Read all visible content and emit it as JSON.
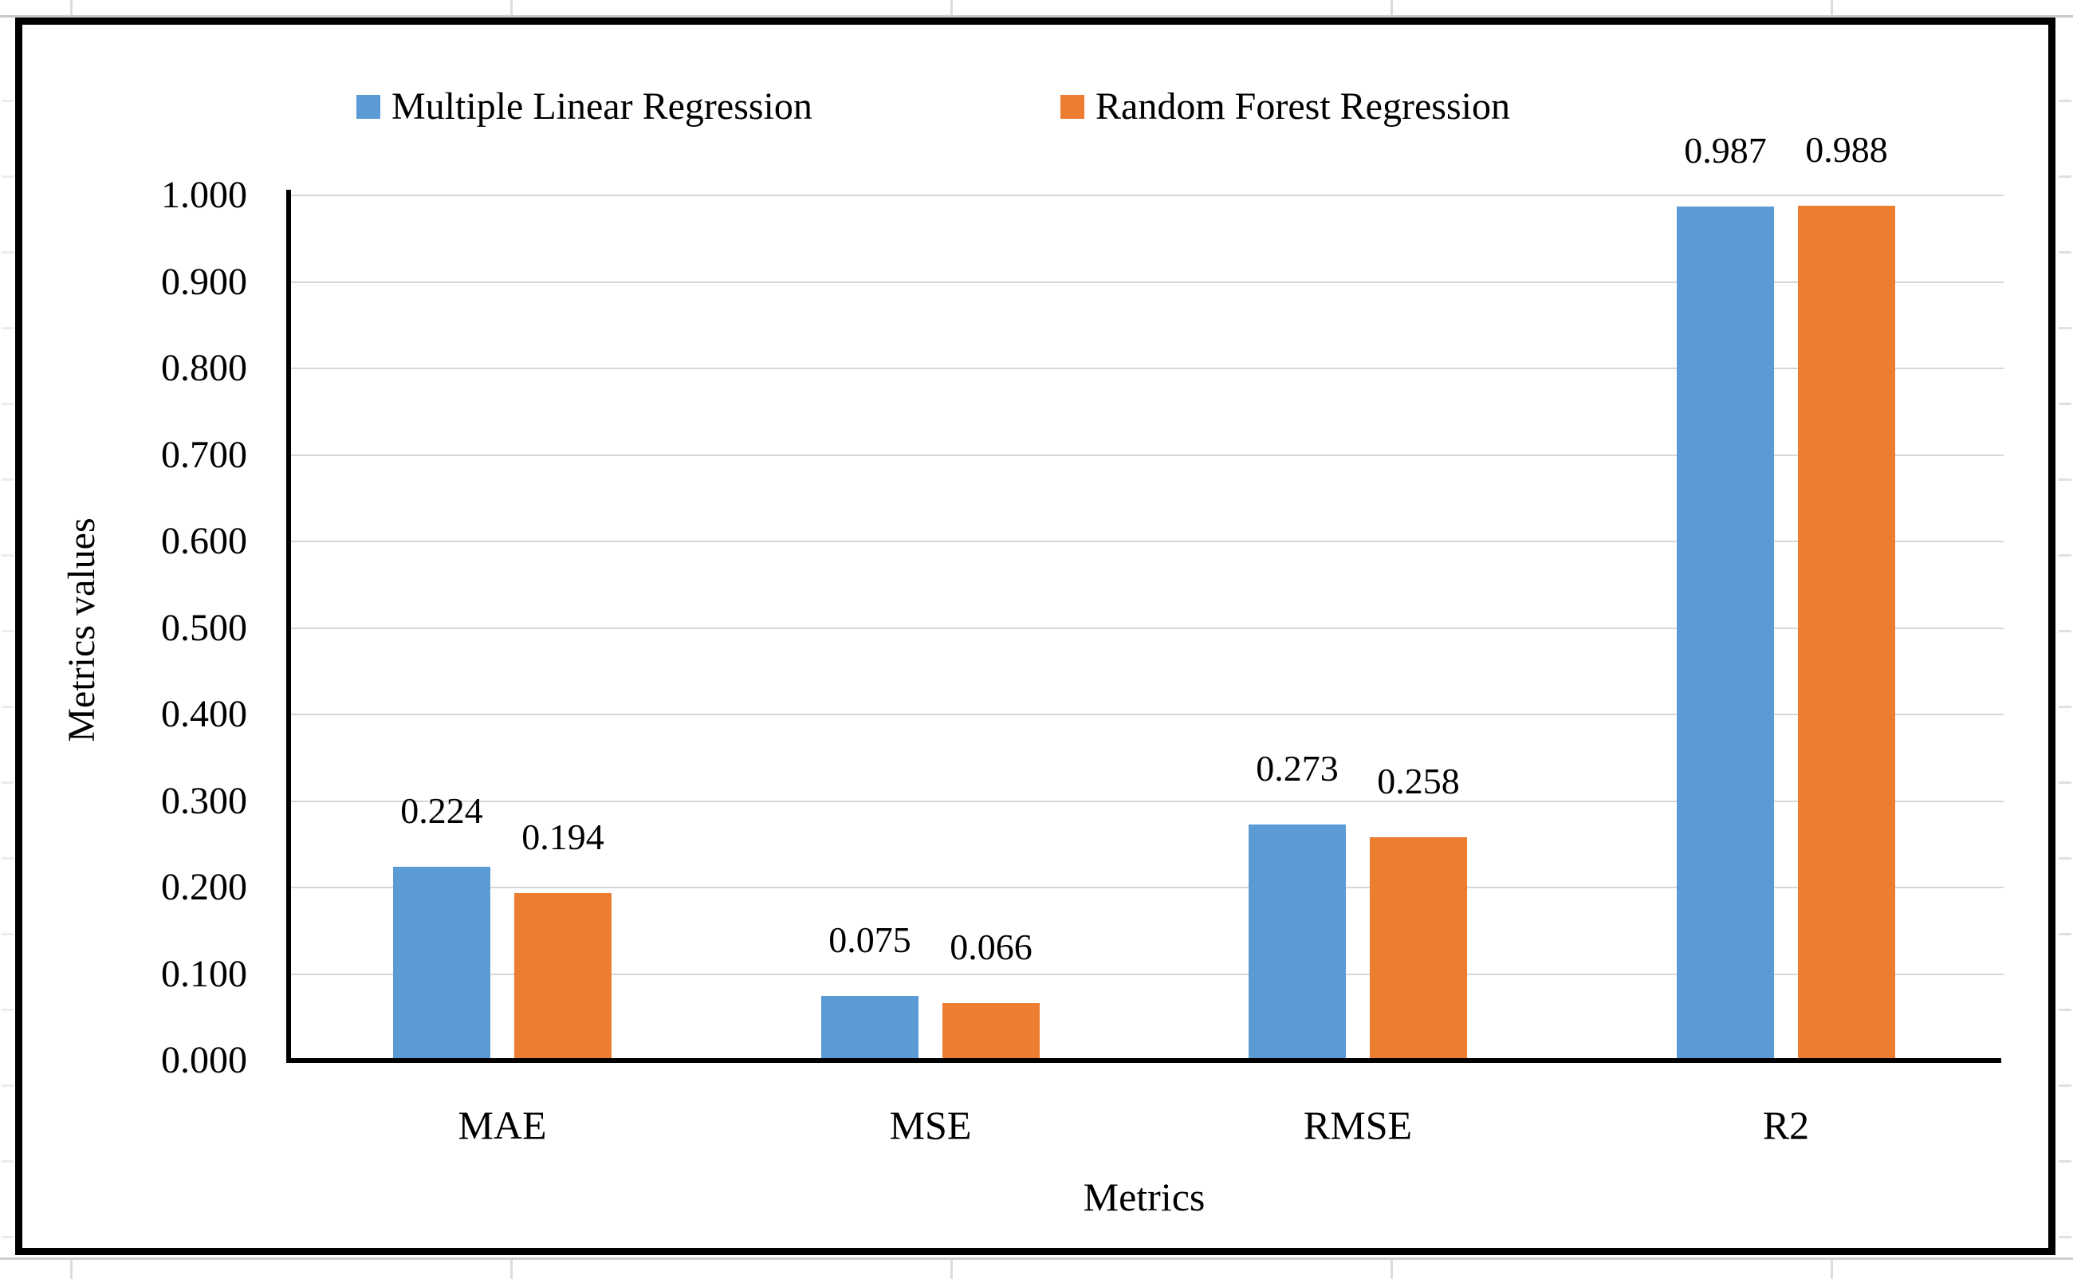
{
  "chart_data": {
    "type": "bar",
    "categories": [
      "MAE",
      "MSE",
      "RMSE",
      "R2"
    ],
    "series": [
      {
        "name": "Multiple Linear Regression",
        "color": "#5B9BD5",
        "values": [
          0.224,
          0.075,
          0.273,
          0.987
        ]
      },
      {
        "name": "Random Forest Regression",
        "color": "#ED7D31",
        "values": [
          0.194,
          0.066,
          0.258,
          0.988
        ]
      }
    ],
    "value_labels": {
      "series_0": [
        "0.224",
        "0.075",
        "0.273",
        "0.987"
      ],
      "series_1": [
        "0.194",
        "0.066",
        "0.258",
        "0.988"
      ]
    },
    "label_decimals": 3,
    "xlabel": "Metrics",
    "ylabel": "Metrics values",
    "ylim": [
      0.0,
      1.0
    ],
    "ytick_step": 0.1,
    "ytick_labels": [
      "0.000",
      "0.100",
      "0.200",
      "0.300",
      "0.400",
      "0.500",
      "0.600",
      "0.700",
      "0.800",
      "0.900",
      "1.000"
    ],
    "grid": true,
    "legend_position": "top",
    "axis_color": "#000000",
    "gridline_color": "#d6d6d6",
    "border_color": "#000000"
  }
}
